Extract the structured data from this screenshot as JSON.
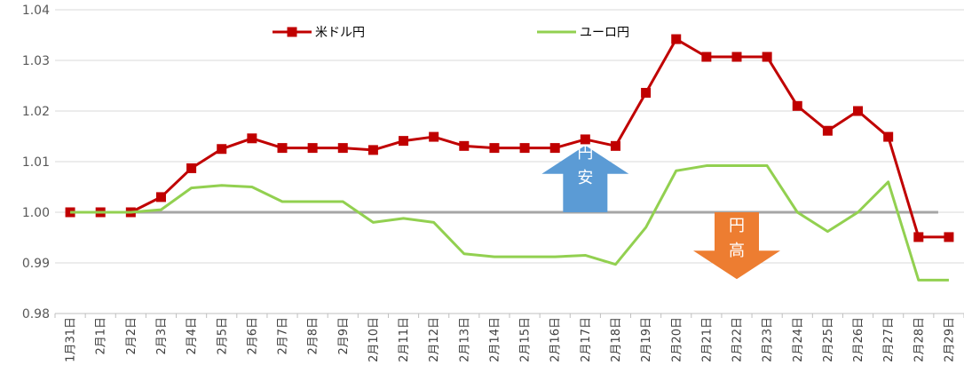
{
  "chart_data": {
    "type": "line",
    "title": "",
    "xlabel": "",
    "ylabel": "",
    "ylim": [
      0.98,
      1.04
    ],
    "yticks": [
      "0.98",
      "0.99",
      "1.00",
      "1.01",
      "1.02",
      "1.03",
      "1.04"
    ],
    "grid": true,
    "legend_position": "top-left",
    "categories": [
      "1月31日",
      "2月1日",
      "2月2日",
      "2月3日",
      "2月4日",
      "2月5日",
      "2月6日",
      "2月7日",
      "2月8日",
      "2月9日",
      "2月10日",
      "2月11日",
      "2月12日",
      "2月13日",
      "2月14日",
      "2月15日",
      "2月16日",
      "2月17日",
      "2月18日",
      "2月19日",
      "2月20日",
      "2月21日",
      "2月22日",
      "2月23日",
      "2月24日",
      "2月25日",
      "2月26日",
      "2月27日",
      "2月28日",
      "2月29日"
    ],
    "series": [
      {
        "name": "米ドル円",
        "color": "#c00000",
        "marker": "square",
        "values": [
          1.0,
          1.0,
          1.0,
          1.003,
          1.0087,
          1.0125,
          1.0146,
          1.0127,
          1.0127,
          1.0127,
          1.0123,
          1.0141,
          1.0149,
          1.0131,
          1.0127,
          1.0127,
          1.0127,
          1.0144,
          1.0131,
          1.0236,
          1.0342,
          1.0307,
          1.0307,
          1.0307,
          1.021,
          1.0161,
          1.02,
          1.0149,
          0.9951,
          0.9951
        ]
      },
      {
        "name": "ユーロ円",
        "color": "#92d050",
        "marker": "none",
        "values": [
          1.0,
          1.0,
          1.0,
          1.0005,
          1.0048,
          1.0053,
          1.005,
          1.0021,
          1.0021,
          1.0021,
          0.998,
          0.9988,
          0.998,
          0.9918,
          0.9912,
          0.9912,
          0.9912,
          0.9915,
          0.9897,
          0.997,
          1.0082,
          1.0092,
          1.0092,
          1.0092,
          1.0,
          0.9962,
          1.0,
          1.006,
          0.9866,
          0.9866
        ]
      }
    ],
    "reference_line": {
      "value": 1.0,
      "color": "#a6a6a6"
    },
    "annotations": [
      {
        "text_lines": [
          "円",
          "安"
        ],
        "direction": "up",
        "color": "#5b9bd5",
        "x_category": "2月17日",
        "y_low": 1.0,
        "y_high": 1.0132
      },
      {
        "text_lines": [
          "円",
          "高"
        ],
        "direction": "down",
        "color": "#ed7d31",
        "x_category": "2月22日",
        "y_low": 0.9868,
        "y_high": 1.0
      }
    ]
  }
}
